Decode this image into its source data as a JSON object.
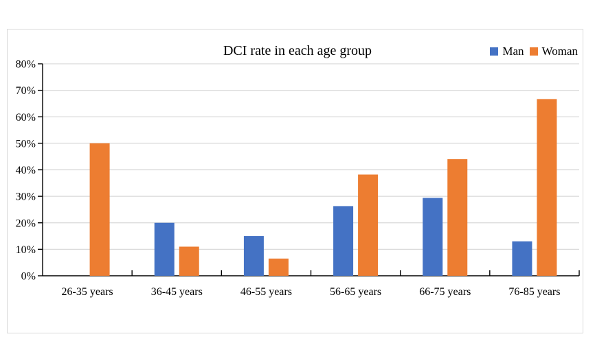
{
  "chart_data": {
    "type": "bar",
    "title": "DCI rate in each age group",
    "categories": [
      "26-35 years",
      "36-45 years",
      "46-55 years",
      "56-65 years",
      "66-75 years",
      "76-85 years"
    ],
    "series": [
      {
        "name": "Man",
        "color": "#4472C4",
        "values": [
          0,
          20,
          15,
          26.3,
          29.4,
          13
        ]
      },
      {
        "name": "Woman",
        "color": "#ED7D31",
        "values": [
          50,
          11,
          6.5,
          38.2,
          44,
          66.7
        ]
      }
    ],
    "xlabel": "",
    "ylabel": "",
    "ylim": [
      0,
      80
    ],
    "ytick_step": 10,
    "ytick_labels": [
      "0%",
      "10%",
      "20%",
      "30%",
      "40%",
      "50%",
      "60%",
      "70%",
      "80%"
    ],
    "grid": "horizontal",
    "gridline_color": "#D9D9D9",
    "axis_color": "#000000",
    "frame_border_color": "#D9D9D9",
    "legend_position": "top-right"
  }
}
